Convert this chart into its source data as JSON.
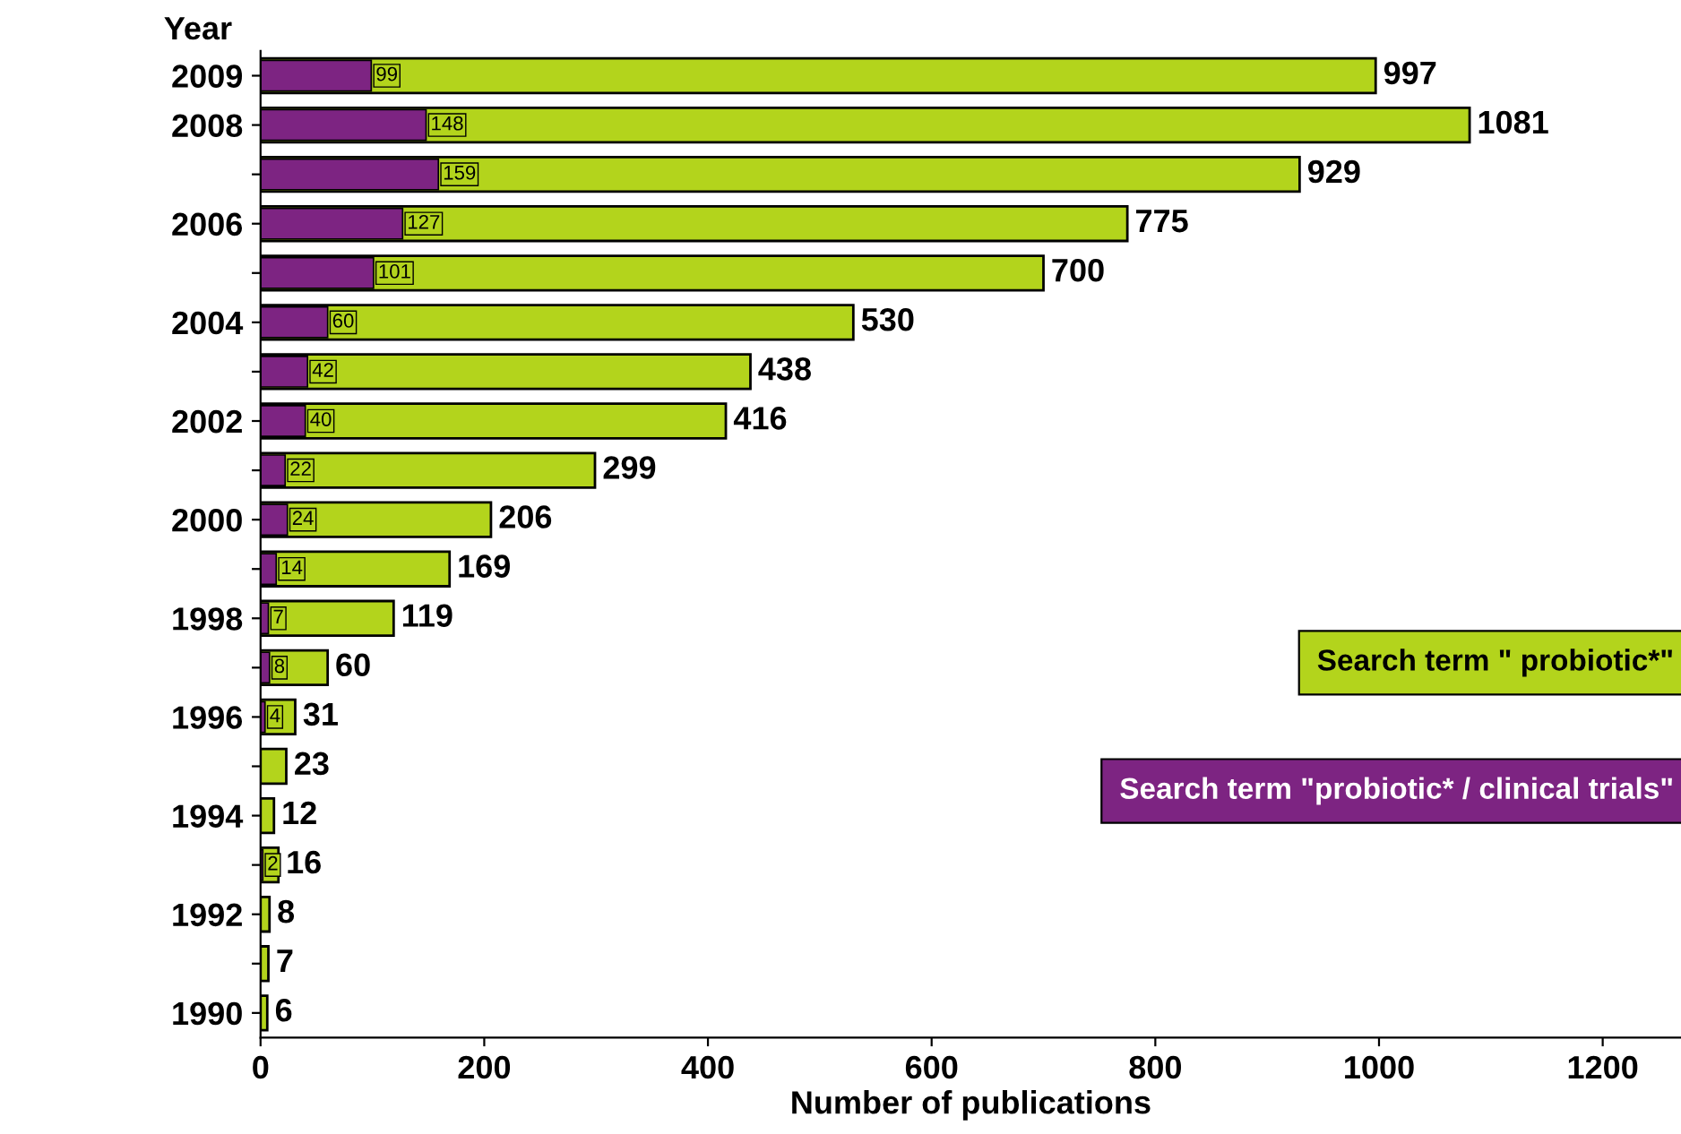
{
  "chart_data": {
    "type": "bar",
    "orientation": "horizontal",
    "ylabel": "Year",
    "xlabel": "Number of publications",
    "categories": [
      "2009",
      "2008",
      null,
      "2006",
      null,
      "2004",
      null,
      "2002",
      null,
      "2000",
      null,
      "1998",
      null,
      "1996",
      null,
      "1994",
      null,
      "1992",
      null,
      "1990"
    ],
    "series": [
      {
        "name": "Search term \" probiotic*\"",
        "color": "#b3d41c",
        "values": [
          997,
          1081,
          929,
          775,
          700,
          530,
          438,
          416,
          299,
          206,
          169,
          119,
          60,
          31,
          23,
          12,
          16,
          8,
          7,
          6
        ]
      },
      {
        "name": "Search term \"probiotic* / clinical trials\"",
        "color": "#7d2482",
        "values": [
          99,
          148,
          159,
          127,
          101,
          60,
          42,
          40,
          22,
          24,
          14,
          7,
          8,
          4,
          null,
          null,
          2,
          null,
          null,
          null
        ]
      }
    ],
    "xlim": [
      0,
      1270
    ],
    "xticks": [
      0,
      200,
      400,
      600,
      800,
      1000,
      1200
    ],
    "data_labels": true,
    "legend": "right",
    "grid": false
  }
}
